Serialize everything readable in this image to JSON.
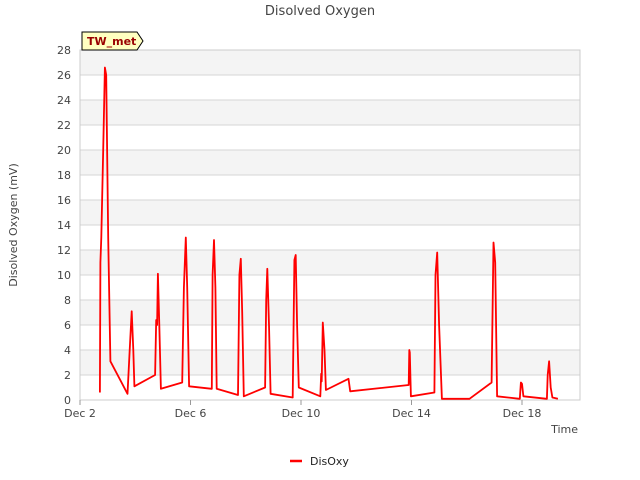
{
  "chart_data": {
    "type": "line",
    "title": "Disolved Oxygen",
    "xlabel": "Time",
    "ylabel": "Disolved Oxygen (mV)",
    "site_label": "TW_met",
    "ylim": [
      0,
      28
    ],
    "xlim": [
      2,
      20.1
    ],
    "y_ticks": [
      0,
      2,
      4,
      6,
      8,
      10,
      12,
      14,
      16,
      18,
      20,
      22,
      24,
      26,
      28
    ],
    "x_ticks": [
      {
        "value": 2,
        "label": "Dec 2"
      },
      {
        "value": 6,
        "label": "Dec 6"
      },
      {
        "value": 10,
        "label": "Dec 10"
      },
      {
        "value": 14,
        "label": "Dec 14"
      },
      {
        "value": 18,
        "label": "Dec 18"
      }
    ],
    "grid": true,
    "legend_position": "bottom-center",
    "series": [
      {
        "name": "DisOxy",
        "color": "#ff0000",
        "points": [
          [
            2.72,
            0.6
          ],
          [
            2.74,
            11
          ],
          [
            2.77,
            13
          ],
          [
            2.84,
            20
          ],
          [
            2.9,
            26.6
          ],
          [
            2.95,
            26
          ],
          [
            3.02,
            13
          ],
          [
            3.1,
            3.1
          ],
          [
            3.72,
            0.5
          ],
          [
            3.8,
            4
          ],
          [
            3.87,
            7.1
          ],
          [
            3.93,
            4
          ],
          [
            3.97,
            1.1
          ],
          [
            4.72,
            2
          ],
          [
            4.76,
            6.4
          ],
          [
            4.79,
            6
          ],
          [
            4.82,
            10.1
          ],
          [
            4.87,
            6
          ],
          [
            4.93,
            0.9
          ],
          [
            5.7,
            1.4
          ],
          [
            5.76,
            9
          ],
          [
            5.83,
            13.0
          ],
          [
            5.88,
            9
          ],
          [
            5.95,
            1.1
          ],
          [
            6.77,
            0.9
          ],
          [
            6.8,
            10
          ],
          [
            6.85,
            12.8
          ],
          [
            6.9,
            9
          ],
          [
            6.95,
            0.9
          ],
          [
            7.72,
            0.4
          ],
          [
            7.77,
            10
          ],
          [
            7.82,
            11.3
          ],
          [
            7.87,
            7
          ],
          [
            7.93,
            0.3
          ],
          [
            8.7,
            1
          ],
          [
            8.74,
            8
          ],
          [
            8.78,
            10.5
          ],
          [
            8.84,
            6
          ],
          [
            8.9,
            0.5
          ],
          [
            9.7,
            0.2
          ],
          [
            9.76,
            11.2
          ],
          [
            9.81,
            11.6
          ],
          [
            9.86,
            6
          ],
          [
            9.92,
            1
          ],
          [
            10.7,
            0.3
          ],
          [
            10.73,
            2.1
          ],
          [
            10.75,
            1.5
          ],
          [
            10.79,
            6.2
          ],
          [
            10.85,
            4
          ],
          [
            10.9,
            0.8
          ],
          [
            11.72,
            1.7
          ],
          [
            11.78,
            0.7
          ],
          [
            13.9,
            1.2
          ],
          [
            13.92,
            4
          ],
          [
            13.94,
            3.8
          ],
          [
            13.98,
            0.3
          ],
          [
            14.83,
            0.6
          ],
          [
            14.87,
            10
          ],
          [
            14.93,
            11.8
          ],
          [
            15,
            6
          ],
          [
            15.1,
            0.1
          ],
          [
            16.1,
            0.1
          ],
          [
            16.9,
            1.4
          ],
          [
            16.97,
            12.6
          ],
          [
            17.03,
            11
          ],
          [
            17.1,
            0.3
          ],
          [
            17.92,
            0.1
          ],
          [
            17.96,
            1.4
          ],
          [
            18.0,
            1.3
          ],
          [
            18.05,
            0.3
          ],
          [
            18.9,
            0.1
          ],
          [
            18.93,
            2
          ],
          [
            18.98,
            3.1
          ],
          [
            19.04,
            1
          ],
          [
            19.1,
            0.2
          ],
          [
            19.3,
            0.1
          ]
        ]
      }
    ]
  },
  "colors": {
    "band_light": "#f4f4f4",
    "band_white": "#ffffff",
    "grid": "#d6d6d6",
    "label_box_fill": "#ffffc0",
    "label_text": "#990000",
    "text": "#444444"
  }
}
